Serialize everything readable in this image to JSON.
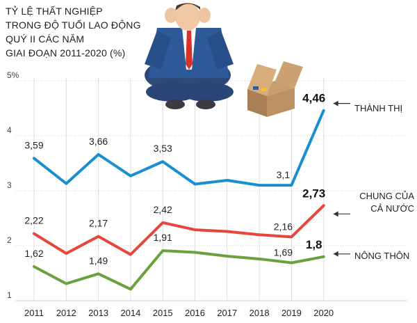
{
  "title_lines": [
    "TỶ LỆ THẤT NGHIỆP",
    "TRONG ĐỘ TUỔI LAO ĐỘNG",
    "QUÝ II CÁC NĂM",
    "GIAI ĐOẠN 2011-2020 (%)"
  ],
  "chart_data": {
    "type": "line",
    "title": "TỶ LỆ THẤT NGHIỆP TRONG ĐỘ TUỔI LAO ĐỘNG QUÝ II CÁC NĂM GIAI ĐOẠN 2011-2020 (%)",
    "x": [
      "2011",
      "2012",
      "2013",
      "2014",
      "2015",
      "2016",
      "2017",
      "2018",
      "2019",
      "2020"
    ],
    "ylim": [
      1,
      5
    ],
    "yticks": [
      "1",
      "2",
      "3",
      "4",
      "5%"
    ],
    "grid": true,
    "series": [
      {
        "name": "THÀNH THỊ",
        "color": "#1a8fd0",
        "values": [
          3.59,
          3.13,
          3.66,
          3.27,
          3.53,
          3.12,
          3.19,
          3.1,
          3.1,
          4.46
        ],
        "labels": [
          "3,59",
          "",
          "3,66",
          "",
          "3,53",
          "",
          "",
          "",
          "3,1",
          "4,46"
        ]
      },
      {
        "name": "CHUNG CỦA CẢ NƯỚC",
        "name_lines": [
          "CHUNG CỦA",
          "CẢ NƯỚC"
        ],
        "color": "#e8453c",
        "values": [
          2.22,
          1.86,
          2.17,
          1.84,
          2.42,
          2.29,
          2.26,
          2.2,
          2.16,
          2.73
        ],
        "labels": [
          "2,22",
          "",
          "2,17",
          "",
          "2,42",
          "",
          "",
          "",
          "2,16",
          "2,73"
        ]
      },
      {
        "name": "NÔNG THÔN",
        "color": "#6aa13d",
        "values": [
          1.62,
          1.31,
          1.49,
          1.21,
          1.91,
          1.88,
          1.81,
          1.76,
          1.69,
          1.8
        ],
        "labels": [
          "1,62",
          "",
          "1,49",
          "",
          "1,91",
          "",
          "",
          "",
          "1,69",
          "1,8"
        ]
      }
    ]
  }
}
